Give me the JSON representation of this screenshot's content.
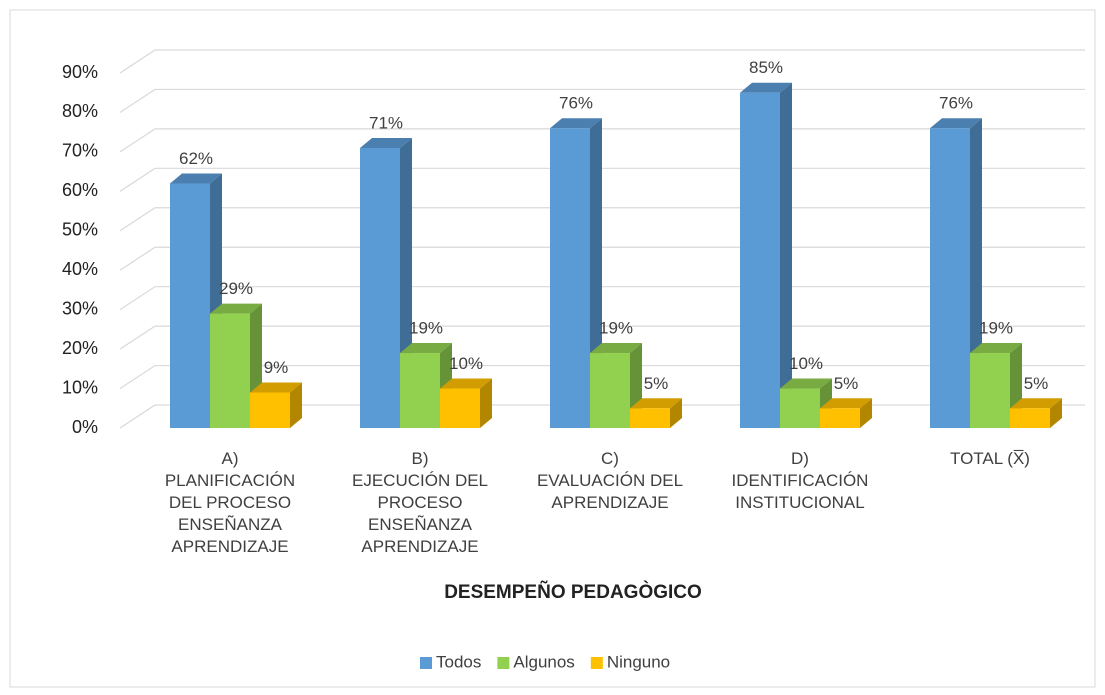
{
  "chart_data": {
    "type": "bar3d",
    "categories": [
      "A)\nPLANIFICACIÓN\nDEL PROCESO\nENSEÑANZA\nAPRENDIZAJE",
      "B)\nEJECUCIÓN DEL\nPROCESO\nENSEÑANZA\nAPRENDIZAJE",
      "C)\nEVALUACIÓN DEL\nAPRENDIZAJE",
      "D)\nIDENTIFICACIÓN\nINSTITUCIONAL",
      "TOTAL  (X̅)"
    ],
    "x_label": "DESEMPEÑO PEDAGÒGICO",
    "series": [
      {
        "name": "Todos",
        "color": "#5b9bd5",
        "values": [
          62,
          71,
          76,
          85,
          76
        ],
        "value_labels": [
          "62%",
          "71%",
          "76%",
          "85%",
          "76%"
        ]
      },
      {
        "name": "Algunos",
        "color": "#92d050",
        "values": [
          29,
          19,
          19,
          10,
          19
        ],
        "value_labels": [
          "29%",
          "19%",
          "19%",
          "10%",
          "19%"
        ]
      },
      {
        "name": "Ninguno",
        "color": "#ffc000",
        "values": [
          9,
          10,
          5,
          5,
          5
        ],
        "value_labels": [
          "9%",
          "10%",
          "5%",
          "5%",
          "5%"
        ]
      }
    ],
    "ylim": [
      0,
      90
    ],
    "yticks": [
      {
        "value": 0,
        "label": "0%"
      },
      {
        "value": 10,
        "label": "10%"
      },
      {
        "value": 20,
        "label": "20%"
      },
      {
        "value": 30,
        "label": "30%"
      },
      {
        "value": 40,
        "label": "40%"
      },
      {
        "value": 50,
        "label": "50%"
      },
      {
        "value": 60,
        "label": "60%"
      },
      {
        "value": 70,
        "label": "70%"
      },
      {
        "value": 80,
        "label": "80%"
      },
      {
        "value": 90,
        "label": "90%"
      }
    ],
    "grid": true,
    "legend": "bottom"
  }
}
